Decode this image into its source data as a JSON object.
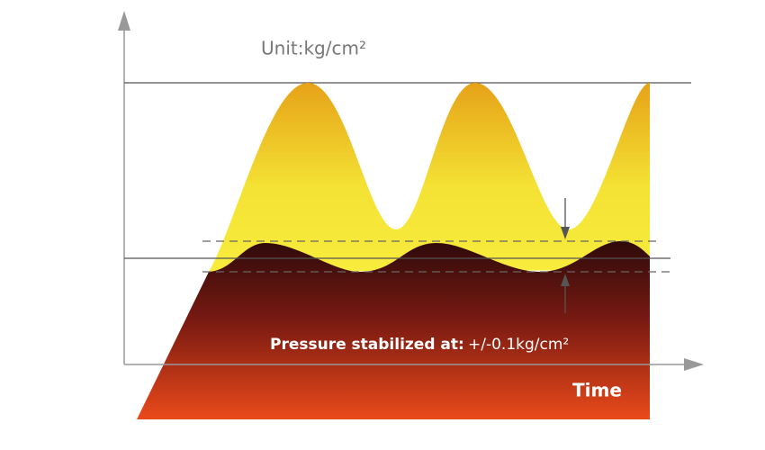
{
  "unit_label": "Unit:kg/cm²",
  "annotation": {
    "label": "Pressure stabilized at:",
    "value": "+/-0.1kg/cm²"
  },
  "x_axis_label": "Time"
}
